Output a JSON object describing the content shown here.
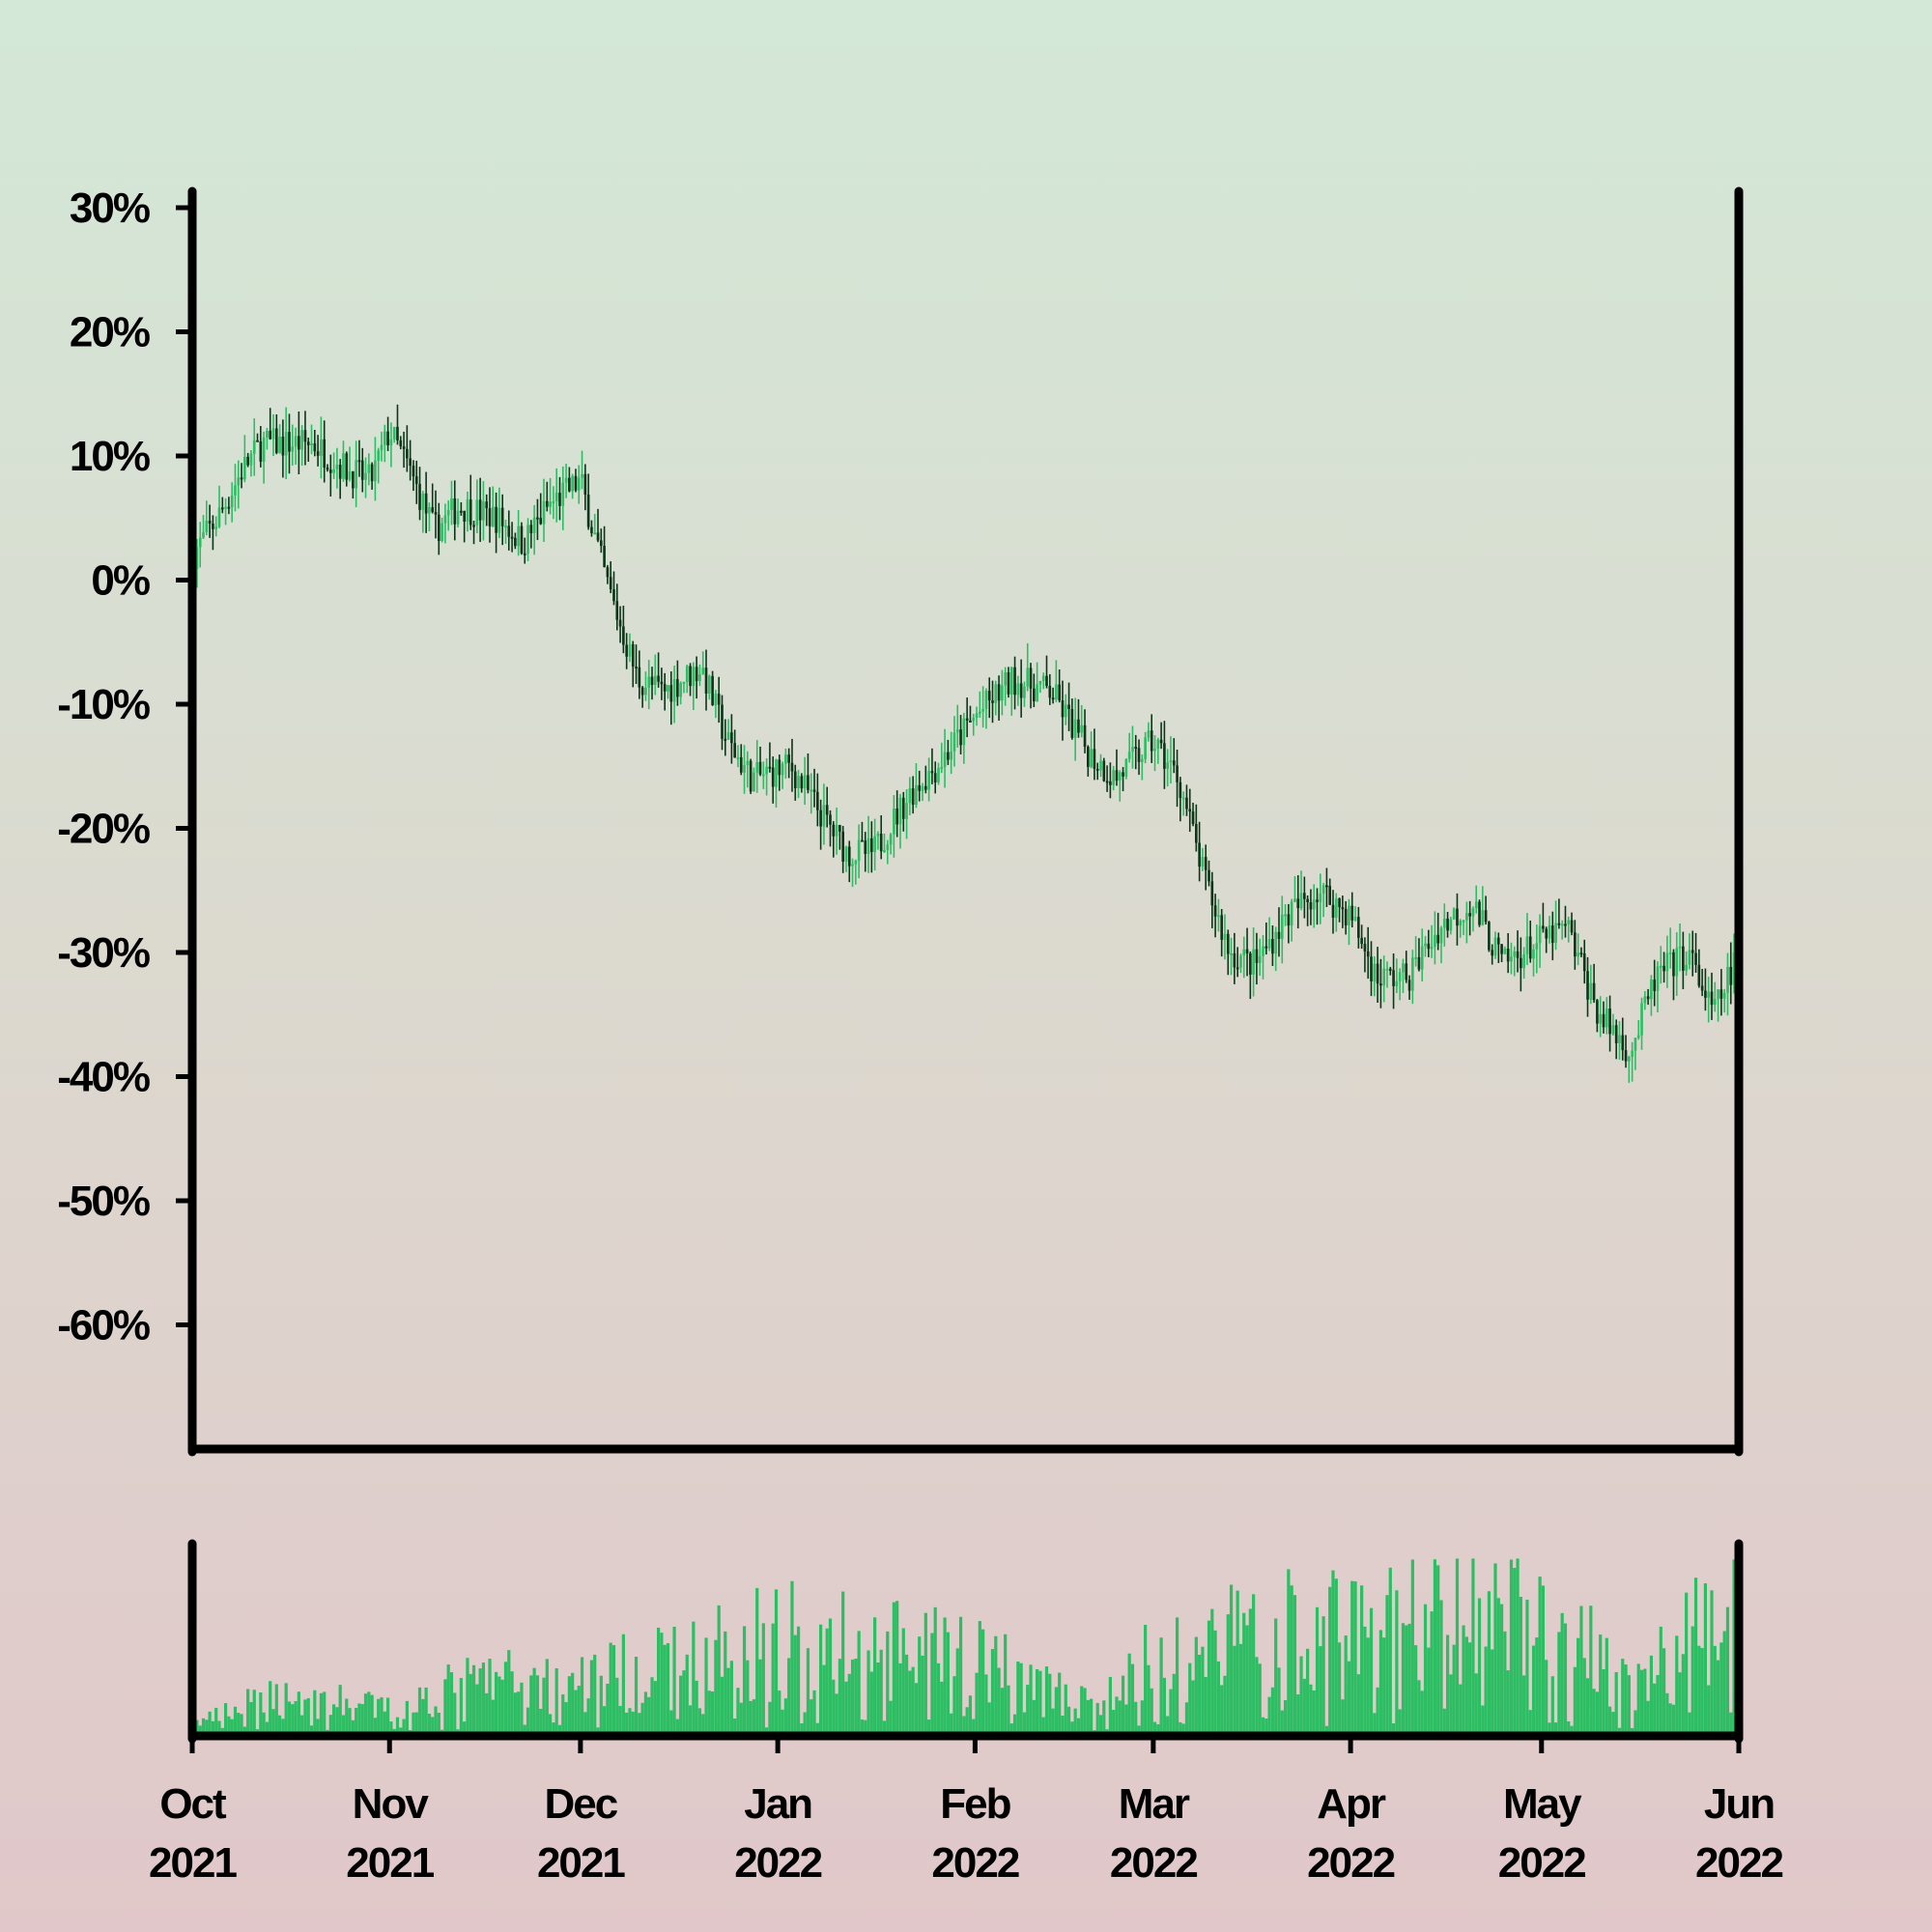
{
  "chart_data": {
    "type": "candlestick",
    "title": "",
    "xlabel": "",
    "ylabel": "",
    "ylim": [
      -70,
      30
    ],
    "y_ticks": [
      "30%",
      "20%",
      "10%",
      "0%",
      "-10%",
      "-20%",
      "-30%",
      "-40%",
      "-50%",
      "-60%"
    ],
    "y_tick_values": [
      30,
      20,
      10,
      0,
      -10,
      -20,
      -30,
      -40,
      -50,
      -60
    ],
    "x_range": [
      "2021-10-01",
      "2022-06-01"
    ],
    "x_ticks": [
      {
        "date": "2021-10-01",
        "month": "Oct",
        "year": "2021"
      },
      {
        "date": "2021-11-01",
        "month": "Nov",
        "year": "2021"
      },
      {
        "date": "2021-12-01",
        "month": "Dec",
        "year": "2021"
      },
      {
        "date": "2022-01-01",
        "month": "Jan",
        "year": "2022"
      },
      {
        "date": "2022-02-01",
        "month": "Feb",
        "year": "2022"
      },
      {
        "date": "2022-03-01",
        "month": "Mar",
        "year": "2022"
      },
      {
        "date": "2022-04-01",
        "month": "Apr",
        "year": "2022"
      },
      {
        "date": "2022-05-01",
        "month": "May",
        "year": "2022"
      },
      {
        "date": "2022-06-01",
        "month": "Jun",
        "year": "2022"
      }
    ],
    "close_anchors": [
      [
        "2021-10-01",
        2
      ],
      [
        "2021-10-05",
        5
      ],
      [
        "2021-10-09",
        9
      ],
      [
        "2021-10-12",
        11
      ],
      [
        "2021-10-20",
        11
      ],
      [
        "2021-10-25",
        9
      ],
      [
        "2021-10-29",
        8
      ],
      [
        "2021-11-01",
        12
      ],
      [
        "2021-11-04",
        9
      ],
      [
        "2021-11-08",
        4
      ],
      [
        "2021-11-12",
        6
      ],
      [
        "2021-11-18",
        5
      ],
      [
        "2021-11-22",
        3
      ],
      [
        "2021-11-26",
        6
      ],
      [
        "2021-12-01",
        8
      ],
      [
        "2021-12-05",
        0
      ],
      [
        "2021-12-10",
        -8
      ],
      [
        "2021-12-14",
        -9
      ],
      [
        "2021-12-20",
        -7
      ],
      [
        "2021-12-24",
        -13
      ],
      [
        "2021-12-28",
        -16
      ],
      [
        "2022-01-03",
        -15
      ],
      [
        "2022-01-08",
        -19
      ],
      [
        "2022-01-12",
        -22
      ],
      [
        "2022-01-16",
        -22
      ],
      [
        "2022-01-22",
        -17
      ],
      [
        "2022-01-26",
        -15
      ],
      [
        "2022-02-01",
        -11
      ],
      [
        "2022-02-07",
        -8
      ],
      [
        "2022-02-13",
        -9
      ],
      [
        "2022-02-19",
        -14
      ],
      [
        "2022-02-23",
        -16
      ],
      [
        "2022-03-01",
        -13
      ],
      [
        "2022-03-05",
        -16
      ],
      [
        "2022-03-09",
        -24
      ],
      [
        "2022-03-13",
        -30
      ],
      [
        "2022-03-17",
        -31
      ],
      [
        "2022-03-22",
        -27
      ],
      [
        "2022-03-27",
        -25
      ],
      [
        "2022-04-01",
        -27
      ],
      [
        "2022-04-05",
        -32
      ],
      [
        "2022-04-10",
        -32
      ],
      [
        "2022-04-15",
        -28
      ],
      [
        "2022-04-20",
        -26
      ],
      [
        "2022-04-25",
        -31
      ],
      [
        "2022-05-01",
        -29
      ],
      [
        "2022-05-05",
        -28
      ],
      [
        "2022-05-10",
        -35
      ],
      [
        "2022-05-15",
        -38
      ],
      [
        "2022-05-19",
        -32
      ],
      [
        "2022-05-24",
        -30
      ],
      [
        "2022-05-28",
        -35
      ],
      [
        "2022-06-01",
        -30
      ]
    ],
    "volume_profile": [
      [
        "2021-10-01",
        0.05
      ],
      [
        "2021-10-15",
        0.25
      ],
      [
        "2021-11-01",
        0.15
      ],
      [
        "2021-11-15",
        0.35
      ],
      [
        "2021-12-01",
        0.35
      ],
      [
        "2021-12-15",
        0.45
      ],
      [
        "2022-01-01",
        0.65
      ],
      [
        "2022-01-15",
        0.55
      ],
      [
        "2022-02-01",
        0.5
      ],
      [
        "2022-02-20",
        0.15
      ],
      [
        "2022-03-01",
        0.5
      ],
      [
        "2022-03-15",
        0.65
      ],
      [
        "2022-04-01",
        0.7
      ],
      [
        "2022-04-15",
        0.75
      ],
      [
        "2022-05-01",
        0.8
      ],
      [
        "2022-05-15",
        0.3
      ],
      [
        "2022-06-01",
        0.85
      ]
    ],
    "colors": {
      "up": "#2dbd63",
      "down": "#0c3618",
      "volume": "#2dbd63",
      "axis": "#000000"
    },
    "grid": false,
    "legend": "none"
  }
}
